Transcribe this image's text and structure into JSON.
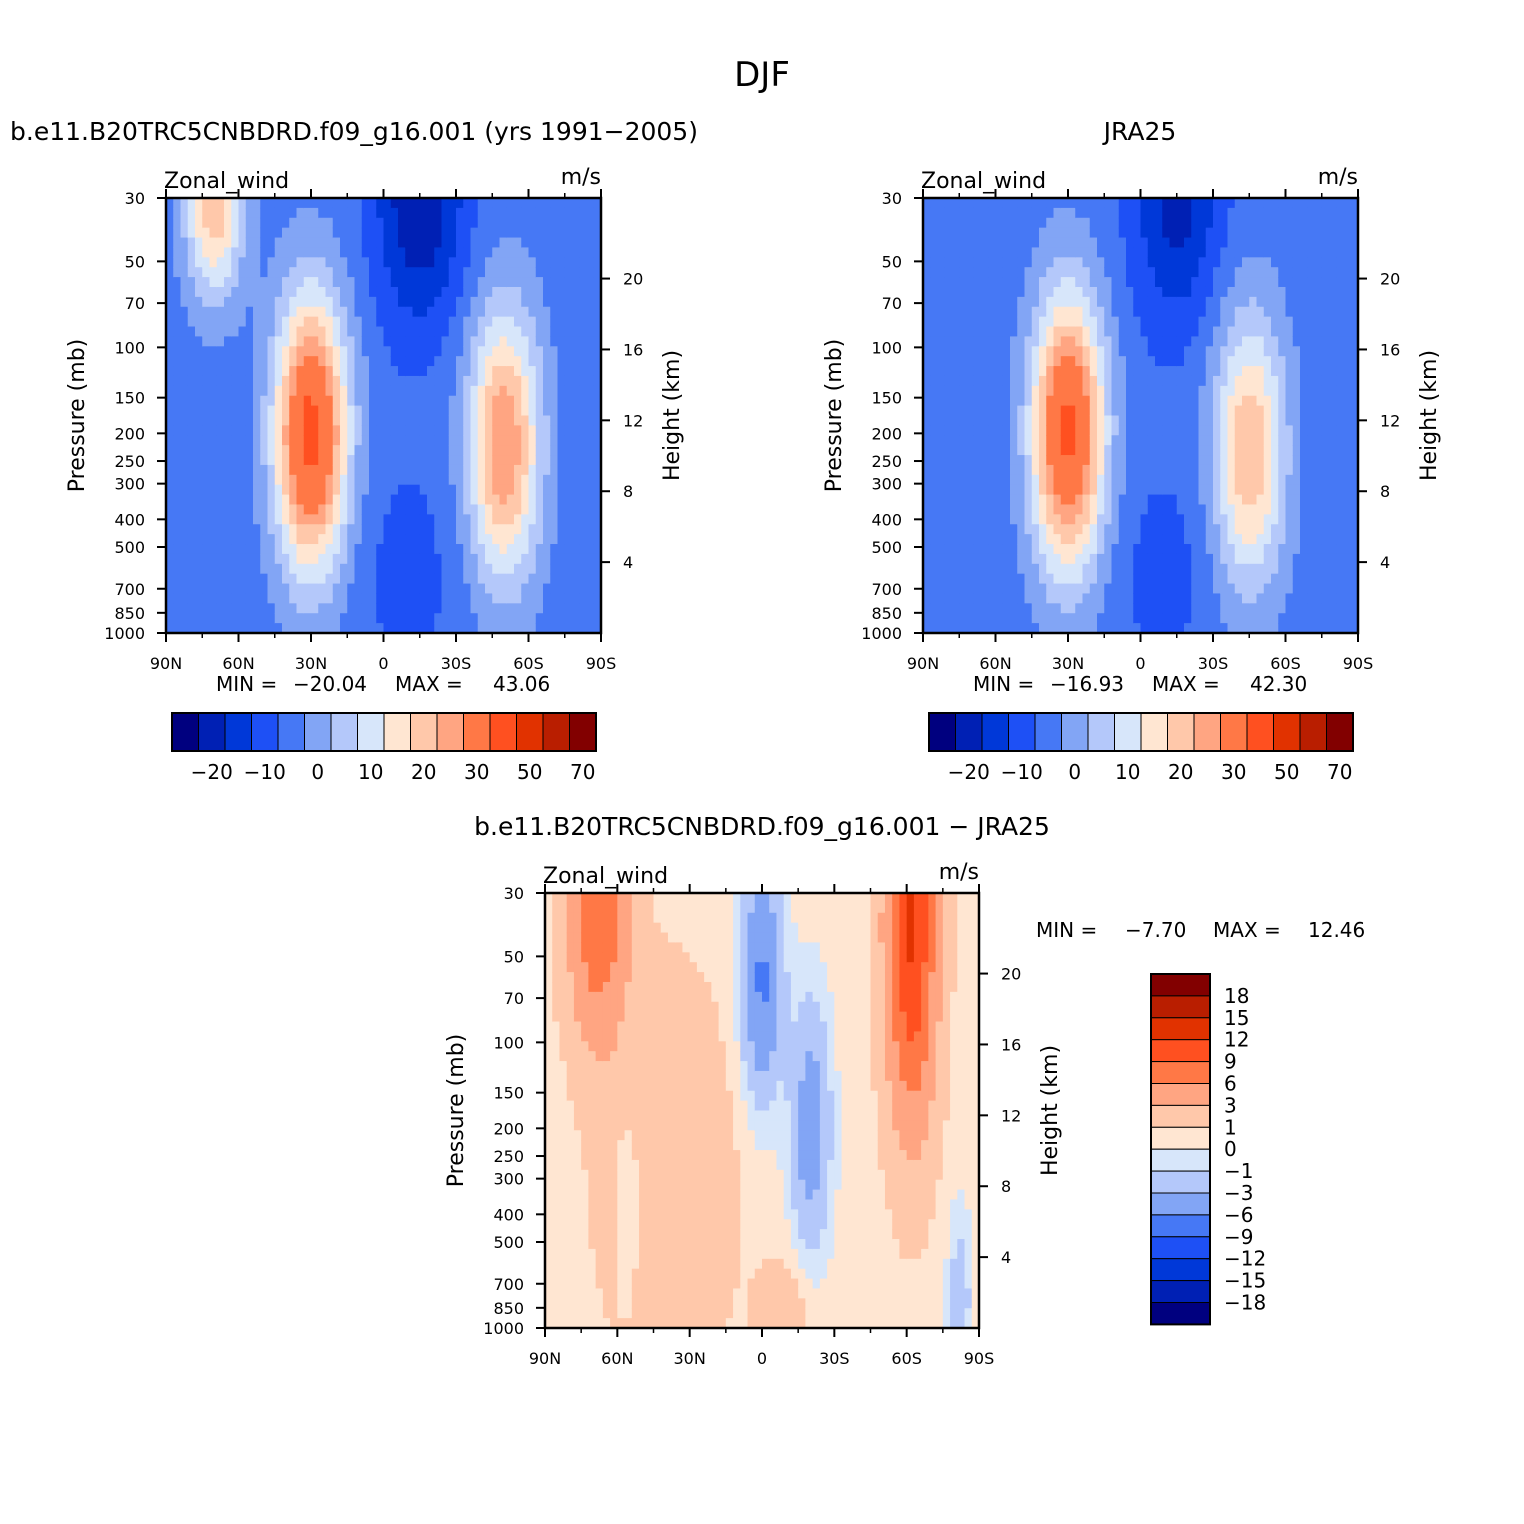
{
  "figure_title": "DJF",
  "chart_data": [
    {
      "type": "heatmap",
      "id": "model",
      "title": "b.e11.B20TRC5CNBDRD.f09_g16.001 (yrs 1991-2005)",
      "variable": "Zonal_wind",
      "units": "m/s",
      "ylabel": "Pressure (mb)",
      "ylabel_right": "Height (km)",
      "x_ticks": [
        "90N",
        "60N",
        "30N",
        "0",
        "30S",
        "60S",
        "90S"
      ],
      "x_values": [
        90,
        60,
        30,
        0,
        -30,
        -60,
        -90
      ],
      "y_ticks": [
        30,
        50,
        70,
        100,
        150,
        200,
        250,
        300,
        400,
        500,
        700,
        850,
        1000
      ],
      "height_ticks": [
        20,
        16,
        12,
        8,
        4
      ],
      "min_label": "MIN =",
      "min_value": "-20.04",
      "max_label": "MAX =",
      "max_value": "43.06",
      "jets": [
        {
          "lat": 30,
          "pressure": 200,
          "max": 43
        },
        {
          "lat": -50,
          "pressure": 220,
          "max": 30
        },
        {
          "lat": 70,
          "pressure": 30,
          "max": 25
        }
      ],
      "easterly_min": {
        "lat": -15,
        "pressure": 30,
        "value": -20
      }
    },
    {
      "type": "heatmap",
      "id": "obs",
      "title": "JRA25",
      "variable": "Zonal_wind",
      "units": "m/s",
      "ylabel": "Pressure (mb)",
      "ylabel_right": "Height (km)",
      "x_ticks": [
        "90N",
        "60N",
        "30N",
        "0",
        "30S",
        "60S",
        "90S"
      ],
      "x_values": [
        90,
        60,
        30,
        0,
        -30,
        -60,
        -90
      ],
      "y_ticks": [
        30,
        50,
        70,
        100,
        150,
        200,
        250,
        300,
        400,
        500,
        700,
        850,
        1000
      ],
      "height_ticks": [
        20,
        16,
        12,
        8,
        4
      ],
      "min_label": "MIN =",
      "min_value": "-16.93",
      "max_label": "MAX =",
      "max_value": "42.30",
      "jets": [
        {
          "lat": 30,
          "pressure": 200,
          "max": 42
        },
        {
          "lat": -45,
          "pressure": 230,
          "max": 25
        }
      ],
      "easterly_min": {
        "lat": -15,
        "pressure": 30,
        "value": -17
      }
    },
    {
      "type": "heatmap",
      "id": "diff",
      "title": "b.e11.B20TRC5CNBDRD.f09_g16.001 - JRA25",
      "variable": "Zonal_wind",
      "units": "m/s",
      "ylabel": "Pressure (mb)",
      "ylabel_right": "Height (km)",
      "x_ticks": [
        "90N",
        "60N",
        "30N",
        "0",
        "30S",
        "60S",
        "90S"
      ],
      "x_values": [
        90,
        60,
        30,
        0,
        -30,
        -60,
        -90
      ],
      "y_ticks": [
        30,
        50,
        70,
        100,
        150,
        200,
        250,
        300,
        400,
        500,
        700,
        850,
        1000
      ],
      "height_ticks": [
        20,
        16,
        12,
        8,
        4
      ],
      "min_label": "MIN =",
      "min_value": "-7.70",
      "max_label": "MAX =",
      "max_value": "12.46"
    }
  ],
  "colorbar_abs": {
    "colors": [
      "#00007f",
      "#0020b4",
      "#0038d8",
      "#1e50f5",
      "#4678f5",
      "#82a5f5",
      "#b4c8fa",
      "#d7e6fa",
      "#ffe6d2",
      "#ffc8aa",
      "#ffa582",
      "#ff7846",
      "#ff5020",
      "#e13200",
      "#b91e00",
      "#820000"
    ],
    "labels": [
      "-20",
      "-10",
      "0",
      "10",
      "20",
      "30",
      "50",
      "70"
    ],
    "label_boundaries": [
      2,
      4,
      6,
      8,
      10,
      12,
      14,
      16
    ]
  },
  "colorbar_diff": {
    "colors": [
      "#00007f",
      "#0020b4",
      "#0038d8",
      "#1e50f5",
      "#4678f5",
      "#82a5f5",
      "#b4c8fa",
      "#d7e6fa",
      "#ffe6d2",
      "#ffc8aa",
      "#ffa582",
      "#ff7846",
      "#ff5020",
      "#e13200",
      "#b91e00",
      "#820000"
    ],
    "levels": [
      "-18",
      "-15",
      "-12",
      "-9",
      "-6",
      "-3",
      "-1",
      "0",
      "1",
      "3",
      "6",
      "9",
      "12",
      "15",
      "18"
    ]
  }
}
